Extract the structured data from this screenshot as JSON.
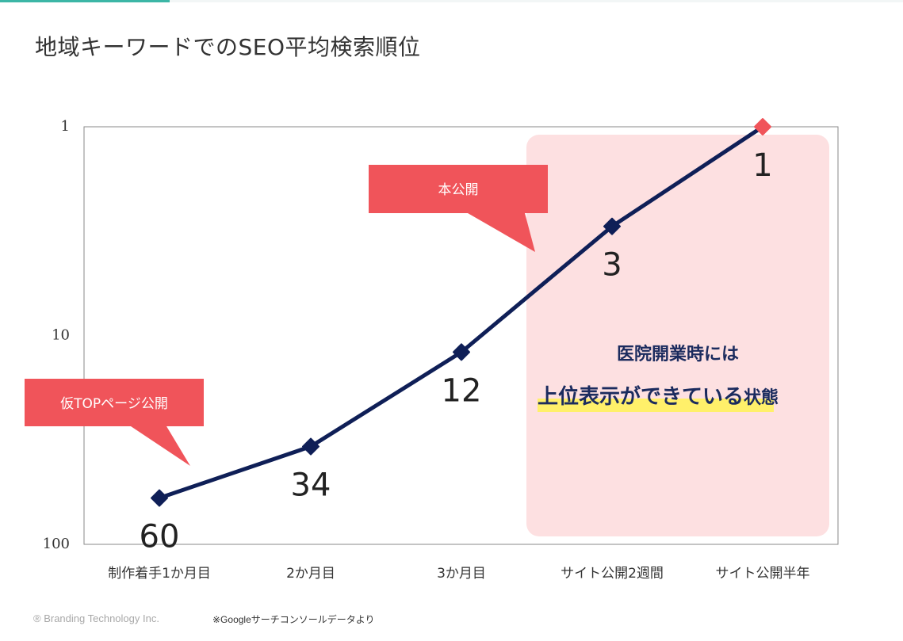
{
  "title": "地域キーワードでのSEO平均検索順位",
  "chart_data": {
    "type": "line",
    "title": "地域キーワードでのSEO平均検索順位",
    "categories": [
      "制作着手1か月目",
      "2か月目",
      "3か月目",
      "サイト公開2週間",
      "サイト公開半年"
    ],
    "series": [
      {
        "values": [
          60,
          34,
          12,
          3,
          1
        ],
        "color": "#0f1f57",
        "last_point_color": "#f0545a"
      }
    ],
    "y_scale": "log",
    "y_inverted": true,
    "ylim": [
      1,
      100
    ],
    "y_ticks": [
      1,
      10,
      100
    ],
    "y_tick_labels": [
      "1",
      "10",
      "100"
    ],
    "data_labels": [
      "60",
      "34",
      "12",
      "3",
      "1"
    ],
    "grid": false,
    "annotations": [
      {
        "text": "仮TOPページ公開",
        "points_to": "制作着手1か月目",
        "color": "#f0545a"
      },
      {
        "text": "本公開",
        "points_to": "サイト公開2週間",
        "color": "#f0545a"
      }
    ],
    "highlight": {
      "from": "サイト公開2週間",
      "to": "サイト公開半年",
      "color": "#fde0e1",
      "line1": "医院開業時には",
      "line2": "上位表示ができている状態",
      "line2_emphasis": "上位表示ができている",
      "line2_rest": "状態",
      "text_color": "#1b2b5e",
      "underline_color": "#fff06a"
    }
  },
  "footer": {
    "copyright": "® Branding Technology Inc.",
    "note": "※Googleサーチコンソールデータより"
  }
}
